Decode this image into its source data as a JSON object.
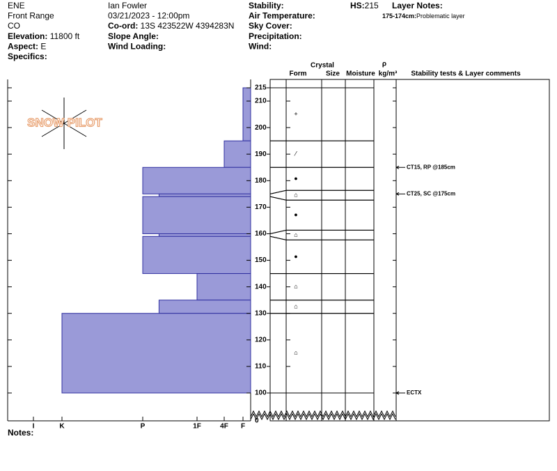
{
  "header": {
    "col1": [
      {
        "value": "ENE"
      },
      {
        "value": "Front Range"
      },
      {
        "value": "CO"
      },
      {
        "label": "Elevation:",
        "value": "11800 ft"
      },
      {
        "label": "Aspect:",
        "value": "E"
      },
      {
        "label": "Specifics:"
      }
    ],
    "col2": [
      {
        "value": "Ian Fowler"
      },
      {
        "value": "03/21/2023 - 12:00pm"
      },
      {
        "label": "Co-ord:",
        "value": "13S 423522W 4394283N"
      },
      {
        "label": "Slope Angle:"
      },
      {
        "label": "Wind Loading:"
      }
    ],
    "col3": [
      {
        "label": "Stability:"
      },
      {
        "label": "Air Temperature:"
      },
      {
        "label": "Sky Cover:"
      },
      {
        "label": "Precipitation:"
      },
      {
        "label": "Wind:"
      }
    ],
    "hs": {
      "label": "HS:",
      "value": "215"
    },
    "layer_notes": {
      "title": "Layer Notes:",
      "notes": [
        {
          "label": "175-174cm:",
          "value": "Problematic layer"
        }
      ]
    }
  },
  "logo": "SNOW PILOT",
  "chart_data": {
    "type": "snow-profile",
    "depth_range": [
      100,
      215
    ],
    "depth_ticks": [
      100,
      110,
      120,
      130,
      140,
      150,
      160,
      170,
      180,
      190,
      200,
      210,
      215
    ],
    "depth_break_tick": 0,
    "hardness_ticks": [
      {
        "value": 1,
        "label": "F"
      },
      {
        "value": 2,
        "label": "4F"
      },
      {
        "value": 3,
        "label": "1F"
      },
      {
        "value": 4,
        "label": "P"
      },
      {
        "value": 5,
        "label": "K"
      },
      {
        "value": 6,
        "label": "I"
      }
    ],
    "color": "#9a9ad8",
    "layers": [
      {
        "top": 215,
        "bottom": 195,
        "hardness": 1,
        "form": "+"
      },
      {
        "top": 195,
        "bottom": 185,
        "hardness": 2,
        "form": "⁄"
      },
      {
        "top": 185,
        "bottom": 175,
        "hardness": 4,
        "form": "●"
      },
      {
        "top": 175,
        "bottom": 174,
        "hardness": 3.7,
        "form": "⌂"
      },
      {
        "top": 174,
        "bottom": 160,
        "hardness": 4,
        "form": "●"
      },
      {
        "top": 160,
        "bottom": 159,
        "hardness": 3.7,
        "form": "⌂"
      },
      {
        "top": 159,
        "bottom": 145,
        "hardness": 4,
        "form": "●"
      },
      {
        "top": 145,
        "bottom": 135,
        "hardness": 3,
        "form": "⌂"
      },
      {
        "top": 135,
        "bottom": 130,
        "hardness": 3.7,
        "form": "⌂"
      },
      {
        "top": 130,
        "bottom": 100,
        "hardness": 5,
        "form": "⌂"
      }
    ],
    "table_headers": {
      "crystal": "Crystal",
      "form": "Form",
      "size": "Size",
      "moisture": "Moisture",
      "rho": "ρ",
      "density": "kg/m³",
      "comments": "Stability tests & Layer comments"
    },
    "stability_tests": [
      {
        "depth": 185,
        "text": "CT15, RP @185cm"
      },
      {
        "depth": 175,
        "text": "CT25, SC @175cm"
      },
      {
        "depth": 100,
        "text": "ECTX"
      }
    ],
    "notes_label": "Notes:"
  }
}
